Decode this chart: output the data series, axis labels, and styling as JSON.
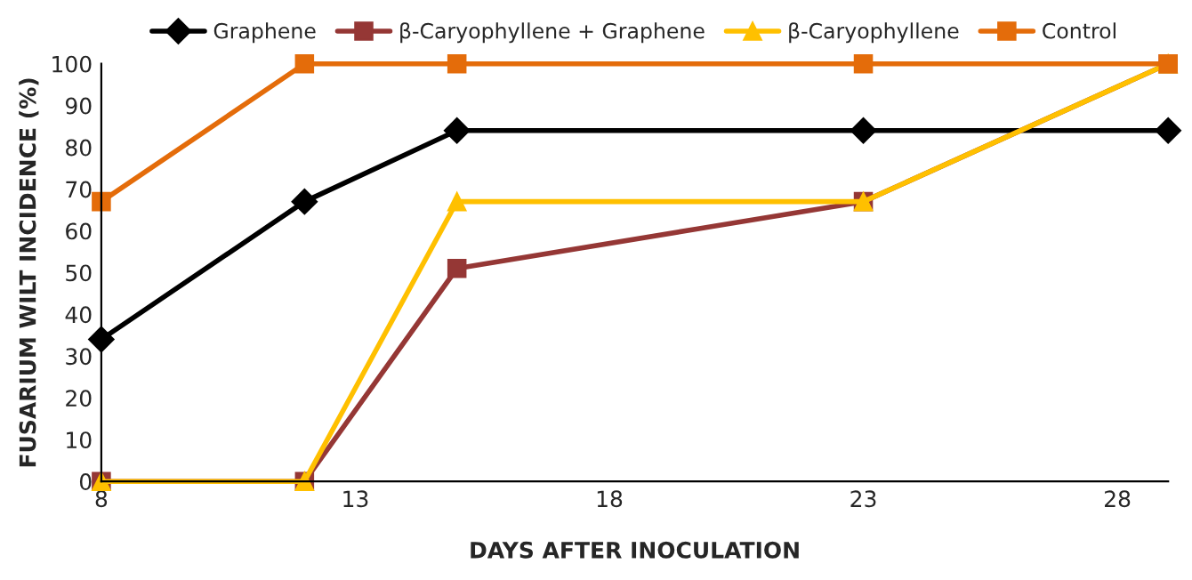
{
  "chart_data": {
    "type": "line",
    "xlabel": "DAYS AFTER INOCULATION",
    "ylabel": "FUSARIUM WILT INCIDENCE (%)",
    "x": [
      8,
      12,
      15,
      23,
      29
    ],
    "series": [
      {
        "name": "Graphene",
        "color": "#000000",
        "marker": "diamond",
        "values": [
          34,
          67,
          84,
          84,
          84
        ]
      },
      {
        "name": "β-Caryophyllene + Graphene",
        "color": "#953735",
        "marker": "square",
        "values": [
          0,
          0,
          51,
          67,
          100
        ]
      },
      {
        "name": "β-Caryophyllene",
        "color": "#ffc000",
        "marker": "triangle",
        "values": [
          0,
          0,
          67,
          67,
          100
        ]
      },
      {
        "name": "Control",
        "color": "#e46c0a",
        "marker": "square",
        "values": [
          67,
          100,
          100,
          100,
          100
        ]
      }
    ],
    "xlim": [
      8,
      29
    ],
    "xticks": [
      8,
      13,
      18,
      23,
      28
    ],
    "ylim": [
      0,
      100
    ],
    "yticks": [
      0,
      10,
      20,
      30,
      40,
      50,
      60,
      70,
      80,
      90,
      100
    ],
    "grid": false,
    "legend": "top",
    "line_style": "solid"
  }
}
